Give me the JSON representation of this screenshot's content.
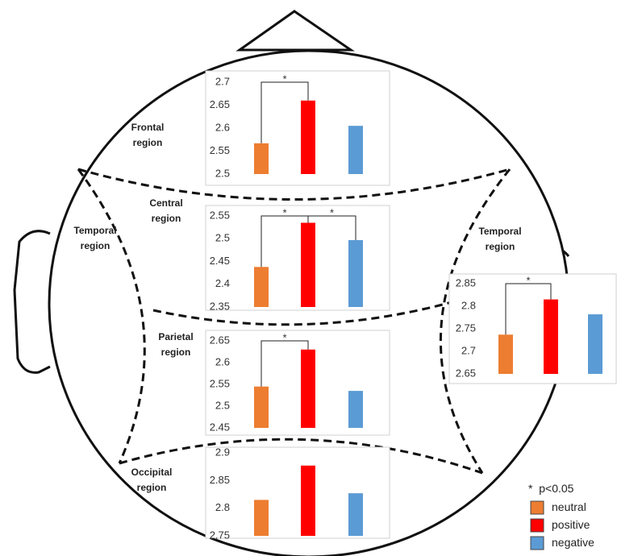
{
  "left_label": "Temporal region",
  "legend": {
    "significance_mark": "*",
    "significance_label": "p<0.05",
    "items": [
      {
        "name": "neutral",
        "color": "#ed7d31"
      },
      {
        "name": "positive",
        "color": "#ff0000"
      },
      {
        "name": "negative",
        "color": "#5b9bd5"
      }
    ]
  },
  "chart_data": [
    {
      "type": "bar",
      "title": "Frontal region",
      "values": [
        2.567,
        2.66,
        2.605
      ],
      "ylim": [
        2.5,
        2.7
      ],
      "yticks": [
        2.5,
        2.55,
        2.6,
        2.65,
        2.7
      ],
      "annotations": [
        {
          "from": 0,
          "to": 1,
          "label": "*"
        }
      ]
    },
    {
      "type": "bar",
      "title": "Central region",
      "values": [
        2.438,
        2.535,
        2.497
      ],
      "ylim": [
        2.35,
        2.55
      ],
      "yticks": [
        2.35,
        2.4,
        2.45,
        2.5,
        2.55
      ],
      "annotations": [
        {
          "from": 0,
          "to": 1,
          "label": "*"
        },
        {
          "from": 1,
          "to": 2,
          "label": "*"
        }
      ]
    },
    {
      "type": "bar",
      "title": "Parietal region",
      "values": [
        2.545,
        2.63,
        2.535
      ],
      "ylim": [
        2.45,
        2.65
      ],
      "yticks": [
        2.45,
        2.5,
        2.55,
        2.6,
        2.65
      ],
      "annotations": [
        {
          "from": 0,
          "to": 1,
          "label": "*"
        }
      ]
    },
    {
      "type": "bar",
      "title": "Occipital region",
      "values": [
        2.815,
        2.877,
        2.827
      ],
      "ylim": [
        2.75,
        2.9
      ],
      "yticks": [
        2.75,
        2.8,
        2.85,
        2.9
      ],
      "annotations": []
    },
    {
      "type": "bar",
      "title": "Temporal region",
      "values": [
        2.737,
        2.815,
        2.782
      ],
      "ylim": [
        2.65,
        2.85
      ],
      "yticks": [
        2.65,
        2.7,
        2.75,
        2.8,
        2.85
      ],
      "annotations": [
        {
          "from": 0,
          "to": 1,
          "label": "*"
        }
      ]
    }
  ]
}
